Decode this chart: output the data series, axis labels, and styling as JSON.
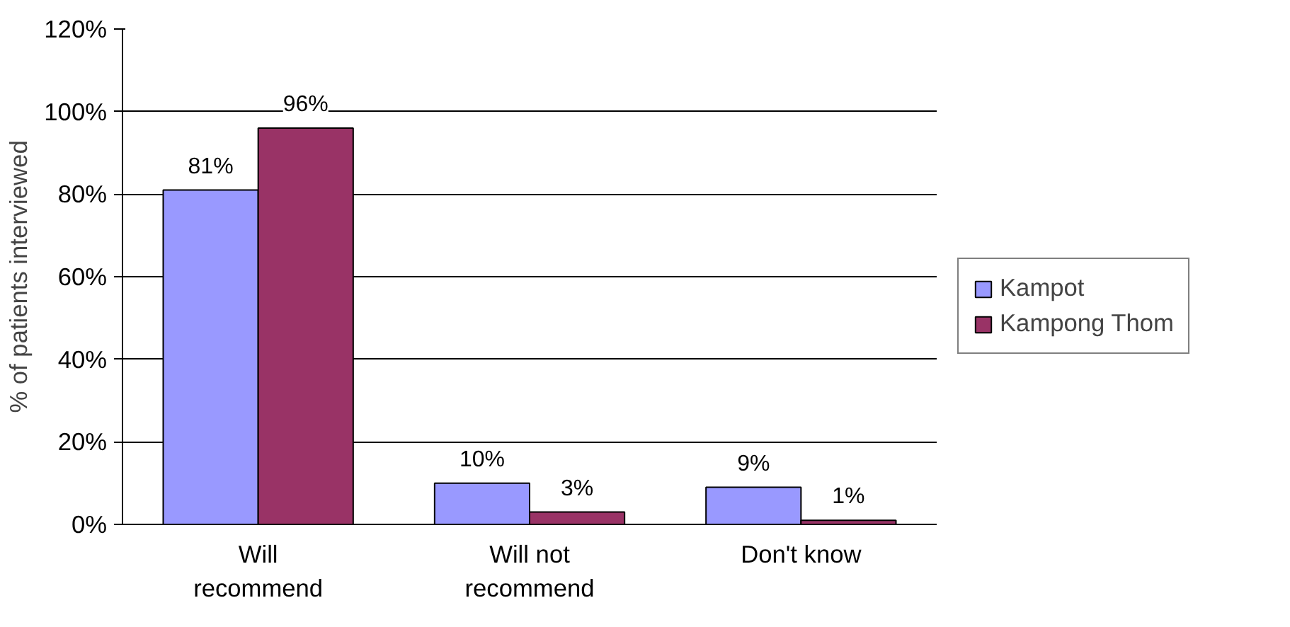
{
  "chart_data": {
    "type": "bar",
    "ylabel": "% of patients interviewed",
    "categories": [
      "Will recommend",
      "Will not recommend",
      "Don't know"
    ],
    "series": [
      {
        "name": "Kampot",
        "color": "#9999ff",
        "values": [
          81,
          10,
          9
        ],
        "value_labels": [
          "81%",
          "10%",
          "9%"
        ]
      },
      {
        "name": "Kampong Thom",
        "color": "#993366",
        "values": [
          96,
          3,
          1
        ],
        "value_labels": [
          "96%",
          "3%",
          "1%"
        ]
      }
    ],
    "ylim": [
      0,
      120
    ],
    "yticks": [
      {
        "value": 0,
        "label": "0%"
      },
      {
        "value": 20,
        "label": "20%"
      },
      {
        "value": 40,
        "label": "40%"
      },
      {
        "value": 60,
        "label": "60%"
      },
      {
        "value": 80,
        "label": "80%"
      },
      {
        "value": 100,
        "label": "100%"
      },
      {
        "value": 120,
        "label": "120%"
      }
    ],
    "grid": "y",
    "legend": "right"
  }
}
